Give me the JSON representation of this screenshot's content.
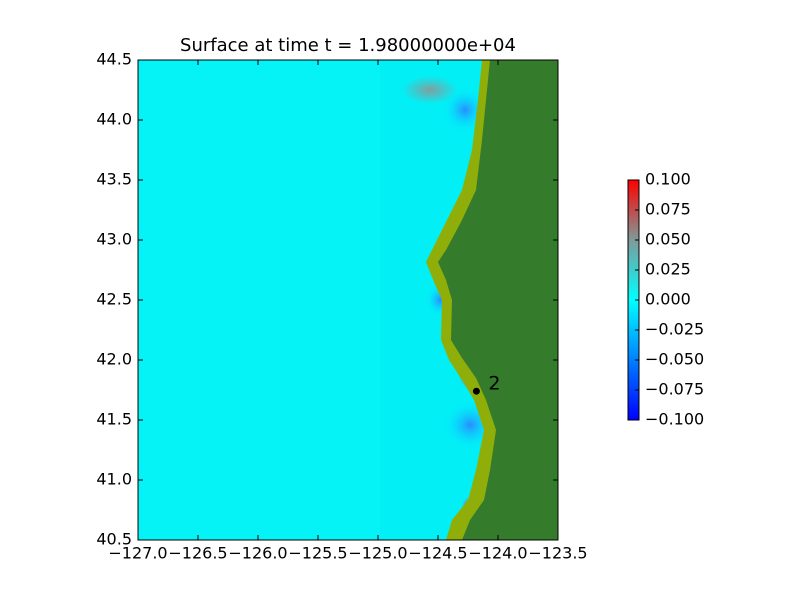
{
  "chart_data": {
    "type": "heatmap",
    "title": "Surface at time t = 1.98000000e+04",
    "xlim": [
      -127,
      -123.5
    ],
    "ylim": [
      40.5,
      44.5
    ],
    "xticks": [
      {
        "value": -127,
        "label": "−127.0"
      },
      {
        "value": -126.5,
        "label": "−126.5"
      },
      {
        "value": -126,
        "label": "−126.0"
      },
      {
        "value": -125.5,
        "label": "−125.5"
      },
      {
        "value": -125,
        "label": "−125.0"
      },
      {
        "value": -124.5,
        "label": "−124.5"
      },
      {
        "value": -124,
        "label": "−124.0"
      },
      {
        "value": -123.5,
        "label": "−123.5"
      }
    ],
    "yticks": [
      {
        "value": 40.5,
        "label": "40.5"
      },
      {
        "value": 41,
        "label": "41.0"
      },
      {
        "value": 41.5,
        "label": "41.5"
      },
      {
        "value": 42,
        "label": "42.0"
      },
      {
        "value": 42.5,
        "label": "42.5"
      },
      {
        "value": 43,
        "label": "43.0"
      },
      {
        "value": 43.5,
        "label": "43.5"
      },
      {
        "value": 44,
        "label": "44.0"
      },
      {
        "value": 44.5,
        "label": "44.5"
      }
    ],
    "colorbar": {
      "lim": [
        -0.1,
        0.1
      ],
      "ticks": [
        {
          "value": 0.1,
          "label": "0.100"
        },
        {
          "value": 0.075,
          "label": "0.075"
        },
        {
          "value": 0.05,
          "label": "0.050"
        },
        {
          "value": 0.025,
          "label": "0.025"
        },
        {
          "value": 0,
          "label": "0.000"
        },
        {
          "value": -0.025,
          "label": "−0.025"
        },
        {
          "value": -0.05,
          "label": "−0.050"
        },
        {
          "value": -0.075,
          "label": "−0.075"
        },
        {
          "value": -0.1,
          "label": "−0.100"
        }
      ]
    },
    "points": [
      {
        "label": "2",
        "x": -124.18,
        "y": 41.74,
        "color": "#000000"
      }
    ]
  }
}
